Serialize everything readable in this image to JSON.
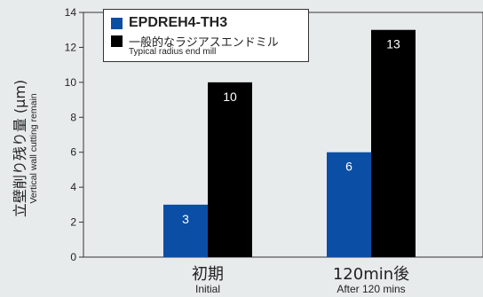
{
  "y_label_jp": "立壁削り残り量 (μm)",
  "y_label_en": "Vertical wall cutting remain",
  "colors": {
    "series1": "#0b4ea6",
    "series2": "#000000",
    "axis": "#333333",
    "grid": "#888888"
  },
  "chart_data": {
    "type": "bar",
    "categories": [
      "初期",
      "120min後"
    ],
    "categories_en": [
      "Initial",
      "After 120 mins"
    ],
    "series": [
      {
        "name": "EPDREH4-TH3",
        "values": [
          3,
          6
        ]
      },
      {
        "name": "一般的なラジアスエンドミル",
        "subname": "Typical radius end mill",
        "values": [
          10,
          13
        ]
      }
    ],
    "ylim": [
      0,
      14
    ],
    "yticks": [
      0,
      2,
      4,
      6,
      8,
      10,
      12,
      14
    ],
    "grid": false,
    "legend": "top-left"
  }
}
